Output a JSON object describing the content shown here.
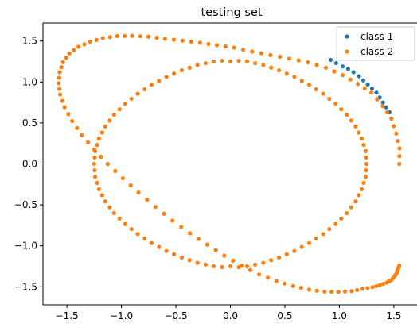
{
  "chart_data": {
    "type": "scatter",
    "title": "testing set",
    "xlabel": "",
    "ylabel": "",
    "xlim": [
      -1.72,
      1.72
    ],
    "ylim": [
      -1.72,
      1.72
    ],
    "x_ticks": [
      -1.5,
      -1.0,
      -0.5,
      0.0,
      0.5,
      1.0,
      1.5
    ],
    "x_tick_labels": [
      "−1.5",
      "−1.0",
      "−0.5",
      "0.0",
      "0.5",
      "1.0",
      "1.5"
    ],
    "y_ticks": [
      -1.5,
      -1.0,
      -0.5,
      0.0,
      0.5,
      1.0,
      1.5
    ],
    "y_tick_labels": [
      "−1.5",
      "−1.0",
      "−0.5",
      "0.0",
      "0.5",
      "1.0",
      "1.5"
    ],
    "grid": false,
    "legend_position": "top-right",
    "series": [
      {
        "name": "class 1",
        "color": "#1f77b4",
        "x": [
          0.92,
          0.97,
          1.03,
          1.08,
          1.13,
          1.18,
          1.22,
          1.26,
          1.3,
          1.34,
          1.37,
          1.4,
          1.43,
          1.46
        ],
        "y": [
          1.27,
          1.23,
          1.19,
          1.16,
          1.12,
          1.07,
          1.02,
          0.97,
          0.92,
          0.87,
          0.81,
          0.75,
          0.69,
          0.63
        ]
      },
      {
        "name": "class 2",
        "color": "#ff7f0e",
        "x": [
          1.55,
          1.551,
          1.552,
          1.537,
          1.522,
          1.499,
          1.477,
          1.438,
          1.398,
          1.346,
          1.294,
          1.232,
          1.17,
          1.101,
          1.031,
          0.953,
          0.876,
          0.793,
          0.711,
          0.626,
          0.541,
          0.455,
          0.368,
          0.284,
          0.199,
          0.117,
          0.034,
          -0.045,
          -0.124,
          -0.201,
          -0.278,
          -0.359,
          -0.439,
          -0.519,
          -0.6,
          -0.676,
          -0.752,
          -0.827,
          -0.902,
          -0.97,
          -1.038,
          -1.104,
          -1.17,
          -1.229,
          -1.287,
          -1.34,
          -1.394,
          -1.436,
          -1.478,
          -1.507,
          -1.536,
          -1.551,
          -1.567,
          -1.571,
          -1.575,
          -1.569,
          -1.563,
          -1.542,
          -1.522,
          -1.487,
          -1.453,
          -1.408,
          -1.364,
          -1.307,
          -1.25,
          -1.188,
          -1.126,
          -1.057,
          -0.987,
          -0.915,
          -0.843,
          -0.765,
          -0.688,
          -0.61,
          -0.532,
          -0.451,
          -0.371,
          -0.291,
          -0.212,
          -0.134,
          -0.056,
          0.024,
          0.103,
          0.183,
          0.263,
          0.343,
          0.422,
          0.499,
          0.576,
          0.649,
          0.723,
          0.794,
          0.865,
          0.928,
          0.991,
          1.052,
          1.113,
          1.162,
          1.212,
          1.259,
          1.305,
          1.339,
          1.372,
          1.404,
          1.435,
          1.455,
          1.476,
          1.491,
          1.507,
          1.517,
          1.527,
          1.532,
          1.537,
          1.544,
          1.55,
          1.25,
          1.246,
          1.241,
          1.223,
          1.206,
          1.177,
          1.149,
          1.108,
          1.068,
          1.017,
          0.966,
          0.908,
          0.851,
          0.787,
          0.723,
          0.655,
          0.587,
          0.517,
          0.446,
          0.374,
          0.302,
          0.227,
          0.153,
          0.077,
          0.0,
          -0.077,
          -0.153,
          -0.227,
          -0.302,
          -0.374,
          -0.446,
          -0.517,
          -0.587,
          -0.655,
          -0.723,
          -0.787,
          -0.851,
          -0.908,
          -0.966,
          -1.017,
          -1.068,
          -1.108,
          -1.149,
          -1.177,
          -1.206,
          -1.223,
          -1.241,
          -1.246,
          -1.25,
          -1.246,
          -1.241,
          -1.223,
          -1.206,
          -1.177,
          -1.149,
          -1.108,
          -1.068,
          -1.017,
          -0.966,
          -0.908,
          -0.851,
          -0.787,
          -0.723,
          -0.655,
          -0.587,
          -0.517,
          -0.446,
          -0.374,
          -0.302,
          -0.227,
          -0.153,
          -0.077,
          0.0,
          0.077,
          0.153,
          0.227,
          0.302,
          0.374,
          0.446,
          0.517,
          0.587,
          0.655,
          0.723,
          0.787,
          0.851,
          0.908,
          0.966,
          1.017,
          1.068,
          1.108,
          1.149,
          1.177,
          1.206,
          1.223,
          1.241,
          1.246
        ],
        "y": [
          0.0,
          0.095,
          0.19,
          0.28,
          0.37,
          0.461,
          0.552,
          0.629,
          0.706,
          0.788,
          0.871,
          0.923,
          0.976,
          1.03,
          1.084,
          1.129,
          1.174,
          1.207,
          1.24,
          1.263,
          1.286,
          1.308,
          1.329,
          1.35,
          1.371,
          1.395,
          1.419,
          1.434,
          1.449,
          1.464,
          1.479,
          1.492,
          1.505,
          1.516,
          1.527,
          1.54,
          1.553,
          1.558,
          1.563,
          1.562,
          1.561,
          1.548,
          1.535,
          1.513,
          1.491,
          1.46,
          1.429,
          1.389,
          1.349,
          1.296,
          1.243,
          1.181,
          1.119,
          1.052,
          0.985,
          0.916,
          0.847,
          0.77,
          0.692,
          0.608,
          0.524,
          0.437,
          0.35,
          0.263,
          0.175,
          0.087,
          0.0,
          -0.087,
          -0.175,
          -0.263,
          -0.35,
          -0.437,
          -0.524,
          -0.608,
          -0.692,
          -0.77,
          -0.847,
          -0.916,
          -0.985,
          -1.052,
          -1.119,
          -1.181,
          -1.243,
          -1.296,
          -1.349,
          -1.389,
          -1.429,
          -1.46,
          -1.491,
          -1.513,
          -1.535,
          -1.548,
          -1.561,
          -1.562,
          -1.563,
          -1.558,
          -1.553,
          -1.54,
          -1.527,
          -1.516,
          -1.505,
          -1.492,
          -1.479,
          -1.464,
          -1.449,
          -1.434,
          -1.419,
          -1.395,
          -1.371,
          -1.35,
          -1.329,
          -1.308,
          -1.286,
          -1.263,
          -1.24,
          0.0,
          0.078,
          0.156,
          0.232,
          0.309,
          0.383,
          0.458,
          0.529,
          0.6,
          0.667,
          0.734,
          0.795,
          0.856,
          0.911,
          0.966,
          1.014,
          1.063,
          1.103,
          1.143,
          1.175,
          1.207,
          1.229,
          1.25,
          1.26,
          1.25,
          1.26,
          1.25,
          1.229,
          1.207,
          1.175,
          1.143,
          1.103,
          1.063,
          1.014,
          0.966,
          0.911,
          0.856,
          0.795,
          0.734,
          0.667,
          0.6,
          0.529,
          0.458,
          0.383,
          0.309,
          0.232,
          0.156,
          0.078,
          0.0,
          -0.078,
          -0.156,
          -0.232,
          -0.309,
          -0.383,
          -0.458,
          -0.529,
          -0.6,
          -0.667,
          -0.734,
          -0.795,
          -0.856,
          -0.911,
          -0.966,
          -1.014,
          -1.063,
          -1.103,
          -1.143,
          -1.175,
          -1.207,
          -1.229,
          -1.25,
          -1.26,
          -1.25,
          -1.26,
          -1.25,
          -1.229,
          -1.207,
          -1.175,
          -1.143,
          -1.103,
          -1.063,
          -1.014,
          -0.966,
          -0.911,
          -0.856,
          -0.795,
          -0.734,
          -0.667,
          -0.6,
          -0.529,
          -0.458,
          -0.383,
          -0.309,
          -0.232,
          -0.156,
          -0.078
        ]
      }
    ]
  }
}
